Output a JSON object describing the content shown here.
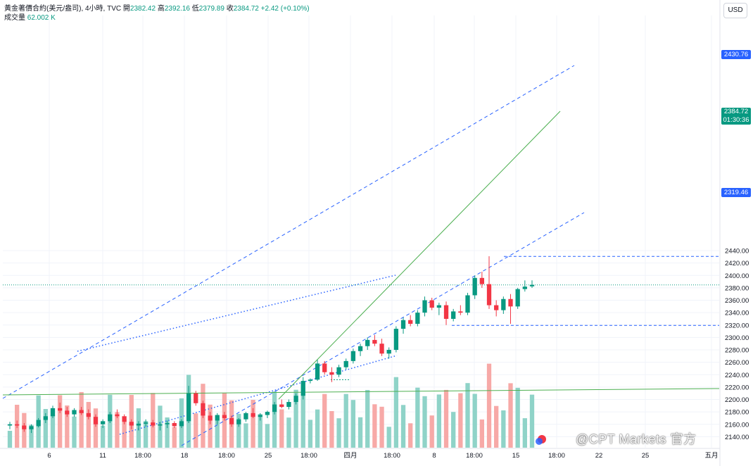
{
  "legend": {
    "symbol_line": "黃金著價合約(美元/盎司), 4小時, TVC",
    "open_label": "開",
    "open": "2382.42",
    "high_label": "高",
    "high": "2392.16",
    "low_label": "低",
    "low": "2379.89",
    "close_label": "收",
    "close": "2384.72",
    "change": "+2.42 (+0.10%)",
    "volume_label": "成交量",
    "volume": "62.002 K"
  },
  "currency_button": "USD",
  "price_tags": {
    "high_line": "2430.76",
    "last_price": "2384.72",
    "countdown": "01:30:36",
    "low_line": "2319.46"
  },
  "watermark": "@CPT Markets 官方",
  "colors": {
    "up": "#089981",
    "down": "#f23645",
    "up_vol": "#8fd3c8",
    "down_vol": "#f7a9a7",
    "dashed_line": "#2962ff",
    "trend_line": "#4caf50",
    "tag_blue": "#2962ff"
  },
  "chart_data": {
    "type": "candlestick",
    "instrument": "黃金著價合約(美元/盎司)",
    "timeframe": "4小時",
    "ylim": [
      2120,
      2460
    ],
    "y_ticks": [
      2140,
      2160,
      2180,
      2200,
      2220,
      2240,
      2260,
      2280,
      2300,
      2320,
      2340,
      2360,
      2380,
      2400,
      2420,
      2440
    ],
    "x_ticks": [
      "6",
      "11",
      "18:00",
      "18",
      "18:00",
      "25",
      "18:00",
      "四月",
      "18:00",
      "8",
      "18:00",
      "15",
      "18:00",
      "22",
      "25",
      "五月"
    ],
    "grid": true,
    "horizontal_lines": [
      2430.76,
      2319.46,
      2384.72
    ],
    "candles_approx": [
      [
        2158,
        2164,
        2152,
        2160
      ],
      [
        2160,
        2166,
        2154,
        2158
      ],
      [
        2158,
        2162,
        2148,
        2152
      ],
      [
        2152,
        2160,
        2146,
        2157
      ],
      [
        2157,
        2170,
        2155,
        2167
      ],
      [
        2167,
        2178,
        2162,
        2173
      ],
      [
        2173,
        2190,
        2170,
        2186
      ],
      [
        2186,
        2195,
        2178,
        2182
      ],
      [
        2182,
        2188,
        2172,
        2176
      ],
      [
        2176,
        2186,
        2172,
        2183
      ],
      [
        2183,
        2188,
        2175,
        2178
      ],
      [
        2178,
        2184,
        2168,
        2172
      ],
      [
        2172,
        2176,
        2156,
        2160
      ],
      [
        2160,
        2168,
        2154,
        2165
      ],
      [
        2165,
        2180,
        2162,
        2176
      ],
      [
        2176,
        2184,
        2170,
        2173
      ],
      [
        2173,
        2176,
        2160,
        2164
      ],
      [
        2164,
        2168,
        2152,
        2158
      ],
      [
        2158,
        2165,
        2150,
        2161
      ],
      [
        2161,
        2168,
        2156,
        2163
      ],
      [
        2163,
        2167,
        2155,
        2158
      ],
      [
        2158,
        2164,
        2150,
        2160
      ],
      [
        2160,
        2166,
        2154,
        2162
      ],
      [
        2162,
        2165,
        2154,
        2157
      ],
      [
        2157,
        2168,
        2154,
        2165
      ],
      [
        2165,
        2222,
        2162,
        2210
      ],
      [
        2210,
        2214,
        2190,
        2194
      ],
      [
        2194,
        2198,
        2170,
        2174
      ],
      [
        2174,
        2180,
        2160,
        2166
      ],
      [
        2166,
        2178,
        2160,
        2175
      ],
      [
        2175,
        2180,
        2166,
        2170
      ],
      [
        2170,
        2174,
        2156,
        2160
      ],
      [
        2160,
        2170,
        2156,
        2168
      ],
      [
        2168,
        2180,
        2164,
        2178
      ],
      [
        2178,
        2186,
        2170,
        2172
      ],
      [
        2172,
        2178,
        2166,
        2175
      ],
      [
        2175,
        2182,
        2170,
        2180
      ],
      [
        2180,
        2196,
        2176,
        2192
      ],
      [
        2192,
        2200,
        2186,
        2188
      ],
      [
        2188,
        2200,
        2184,
        2196
      ],
      [
        2196,
        2210,
        2192,
        2206
      ],
      [
        2206,
        2236,
        2200,
        2230
      ],
      [
        2230,
        2234,
        2226,
        2232
      ],
      [
        2232,
        2264,
        2230,
        2258
      ],
      [
        2258,
        2262,
        2240,
        2244
      ],
      [
        2244,
        2252,
        2228,
        2240
      ],
      [
        2240,
        2256,
        2236,
        2252
      ],
      [
        2252,
        2266,
        2248,
        2262
      ],
      [
        2262,
        2282,
        2258,
        2278
      ],
      [
        2278,
        2290,
        2270,
        2286
      ],
      [
        2286,
        2300,
        2280,
        2296
      ],
      [
        2296,
        2304,
        2286,
        2290
      ],
      [
        2290,
        2298,
        2270,
        2274
      ],
      [
        2274,
        2284,
        2266,
        2280
      ],
      [
        2280,
        2318,
        2276,
        2314
      ],
      [
        2314,
        2332,
        2306,
        2328
      ],
      [
        2328,
        2336,
        2318,
        2322
      ],
      [
        2322,
        2344,
        2318,
        2340
      ],
      [
        2340,
        2366,
        2334,
        2360
      ],
      [
        2360,
        2364,
        2344,
        2348
      ],
      [
        2348,
        2356,
        2336,
        2352
      ],
      [
        2352,
        2358,
        2320,
        2330
      ],
      [
        2330,
        2346,
        2326,
        2342
      ],
      [
        2342,
        2352,
        2336,
        2340
      ],
      [
        2340,
        2372,
        2336,
        2368
      ],
      [
        2368,
        2400,
        2362,
        2396
      ],
      [
        2396,
        2406,
        2380,
        2386
      ],
      [
        2386,
        2431,
        2346,
        2352
      ],
      [
        2352,
        2360,
        2334,
        2344
      ],
      [
        2344,
        2366,
        2338,
        2362
      ],
      [
        2362,
        2370,
        2322,
        2350
      ],
      [
        2350,
        2380,
        2346,
        2378
      ],
      [
        2378,
        2392,
        2374,
        2382
      ],
      [
        2382.42,
        2392.16,
        2379.89,
        2384.72
      ]
    ]
  }
}
